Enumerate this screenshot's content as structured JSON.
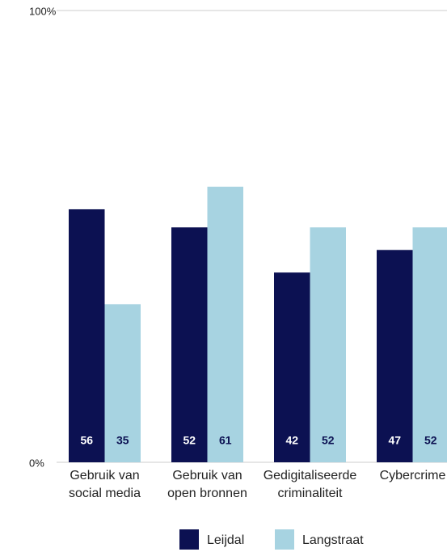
{
  "chart_data": {
    "type": "bar",
    "categories": [
      [
        "Gebruik van",
        "social media"
      ],
      [
        "Gebruik van",
        "open bronnen"
      ],
      [
        "Gedigitaliseerde",
        "criminaliteit"
      ],
      [
        "Cybercrime"
      ]
    ],
    "series": [
      {
        "name": "Leijdal",
        "color": "#0c1152",
        "values": [
          56,
          52,
          42,
          47
        ]
      },
      {
        "name": "Langstraat",
        "color": "#a7d3e1",
        "values": [
          35,
          61,
          52,
          52
        ]
      }
    ],
    "ylim": [
      0,
      100
    ],
    "yticks": [
      {
        "value": 0,
        "label": "0%"
      },
      {
        "value": 100,
        "label": "100%"
      }
    ],
    "grid": true
  }
}
